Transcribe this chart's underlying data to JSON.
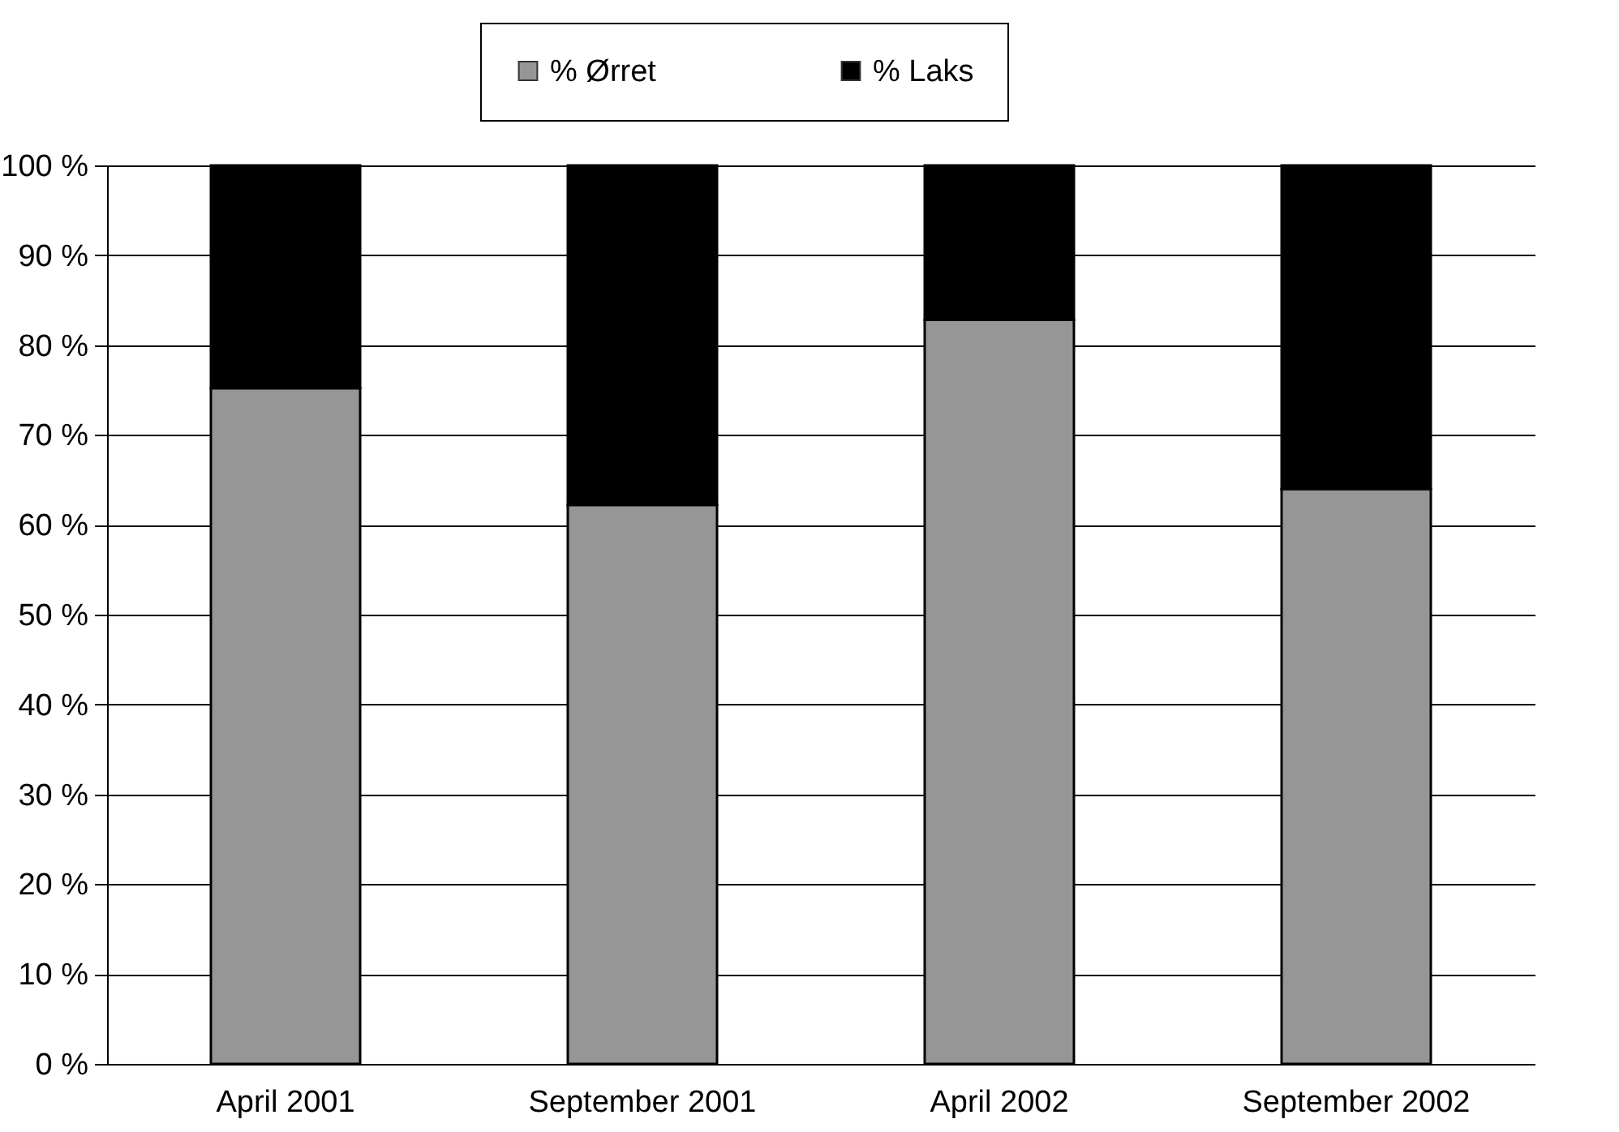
{
  "chart_data": {
    "type": "bar",
    "stacked": true,
    "categories": [
      "April 2001",
      "September 2001",
      "April 2002",
      "September 2002"
    ],
    "series": [
      {
        "name": "% Ørret",
        "color": "#969696",
        "values": [
          75.2,
          62.2,
          82.8,
          64.0
        ]
      },
      {
        "name": "% Laks",
        "color": "#000000",
        "values": [
          24.8,
          37.8,
          17.2,
          36.0
        ]
      }
    ],
    "ylim": [
      0,
      100
    ],
    "yticks": [
      {
        "value": 0,
        "label": "0 %"
      },
      {
        "value": 10,
        "label": "10 %"
      },
      {
        "value": 20,
        "label": "20 %"
      },
      {
        "value": 30,
        "label": "30 %"
      },
      {
        "value": 40,
        "label": "40 %"
      },
      {
        "value": 50,
        "label": "50 %"
      },
      {
        "value": 60,
        "label": "60 %"
      },
      {
        "value": 70,
        "label": "70 %"
      },
      {
        "value": 80,
        "label": "80 %"
      },
      {
        "value": 90,
        "label": "90 %"
      },
      {
        "value": 100,
        "label": "100 %"
      }
    ],
    "grid": "y",
    "legend": "top"
  }
}
